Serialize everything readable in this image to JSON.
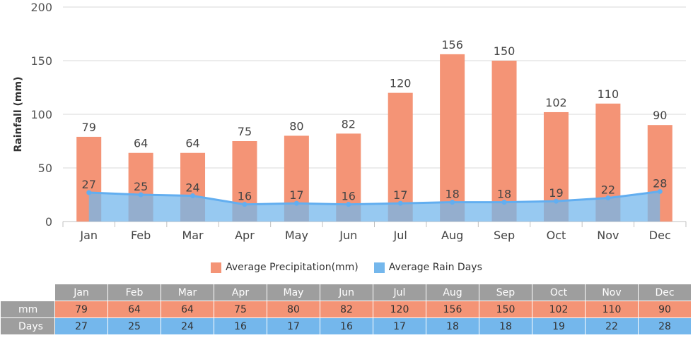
{
  "chart_data": {
    "type": "bar",
    "ylabel": "Rainfall (mm)",
    "ylim": [
      0,
      200
    ],
    "yticks": [
      0,
      50,
      100,
      150,
      200
    ],
    "categories": [
      "Jan",
      "Feb",
      "Mar",
      "Apr",
      "May",
      "Jun",
      "Jul",
      "Aug",
      "Sep",
      "Oct",
      "Nov",
      "Dec"
    ],
    "grid": true,
    "series": [
      {
        "name": "Average Precipitation(mm)",
        "type": "bar",
        "color": "#f49476",
        "values": [
          79,
          64,
          64,
          75,
          80,
          82,
          120,
          156,
          150,
          102,
          110,
          90
        ]
      },
      {
        "name": "Average Rain Days",
        "type": "area",
        "color": "#74b7ec",
        "line_color": "#62aef0",
        "values": [
          27,
          25,
          24,
          16,
          17,
          16,
          17,
          18,
          18,
          19,
          22,
          28
        ]
      }
    ],
    "legend": "bottom-center"
  },
  "table": {
    "row_labels": [
      "mm",
      "Days"
    ]
  }
}
